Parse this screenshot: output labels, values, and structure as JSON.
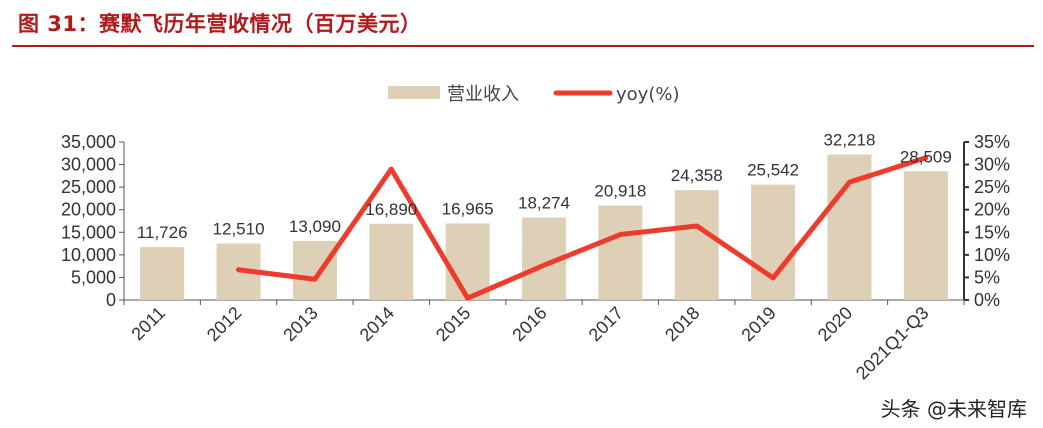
{
  "header": {
    "title": "图 31：赛默飞历年营收情况（百万美元）"
  },
  "watermark": "头条 @未来智库",
  "chart_data": {
    "type": "bar+line",
    "title": "图 31：赛默飞历年营收情况（百万美元）",
    "categories": [
      "2011",
      "2012",
      "2013",
      "2014",
      "2015",
      "2016",
      "2017",
      "2018",
      "2019",
      "2020",
      "2021Q1-Q3"
    ],
    "series": [
      {
        "name": "营业收入",
        "type": "bar",
        "axis": "left",
        "color": "#ddd0b6",
        "values": [
          11726,
          12510,
          13090,
          16890,
          16965,
          18274,
          20918,
          24358,
          25542,
          32218,
          28509
        ],
        "labels": [
          "11,726",
          "12,510",
          "13,090",
          "16,890",
          "16,965",
          "18,274",
          "20,918",
          "24,358",
          "25,542",
          "32,218",
          "28,509"
        ]
      },
      {
        "name": "yoy(%)",
        "type": "line",
        "axis": "right",
        "color": "#ef3b2c",
        "values": [
          null,
          6.7,
          4.6,
          29.0,
          0.4,
          7.7,
          14.5,
          16.4,
          4.9,
          26.1,
          31.5
        ]
      }
    ],
    "y_left": {
      "min": 0,
      "max": 35000,
      "step": 5000,
      "ticks": [
        "0",
        "5,000",
        "10,000",
        "15,000",
        "20,000",
        "25,000",
        "30,000",
        "35,000"
      ]
    },
    "y_right": {
      "min": 0,
      "max": 35,
      "step": 5,
      "ticks": [
        "0%",
        "5%",
        "10%",
        "15%",
        "20%",
        "25%",
        "30%",
        "35%"
      ]
    },
    "legend": {
      "position": "top-center"
    },
    "grid": false
  }
}
